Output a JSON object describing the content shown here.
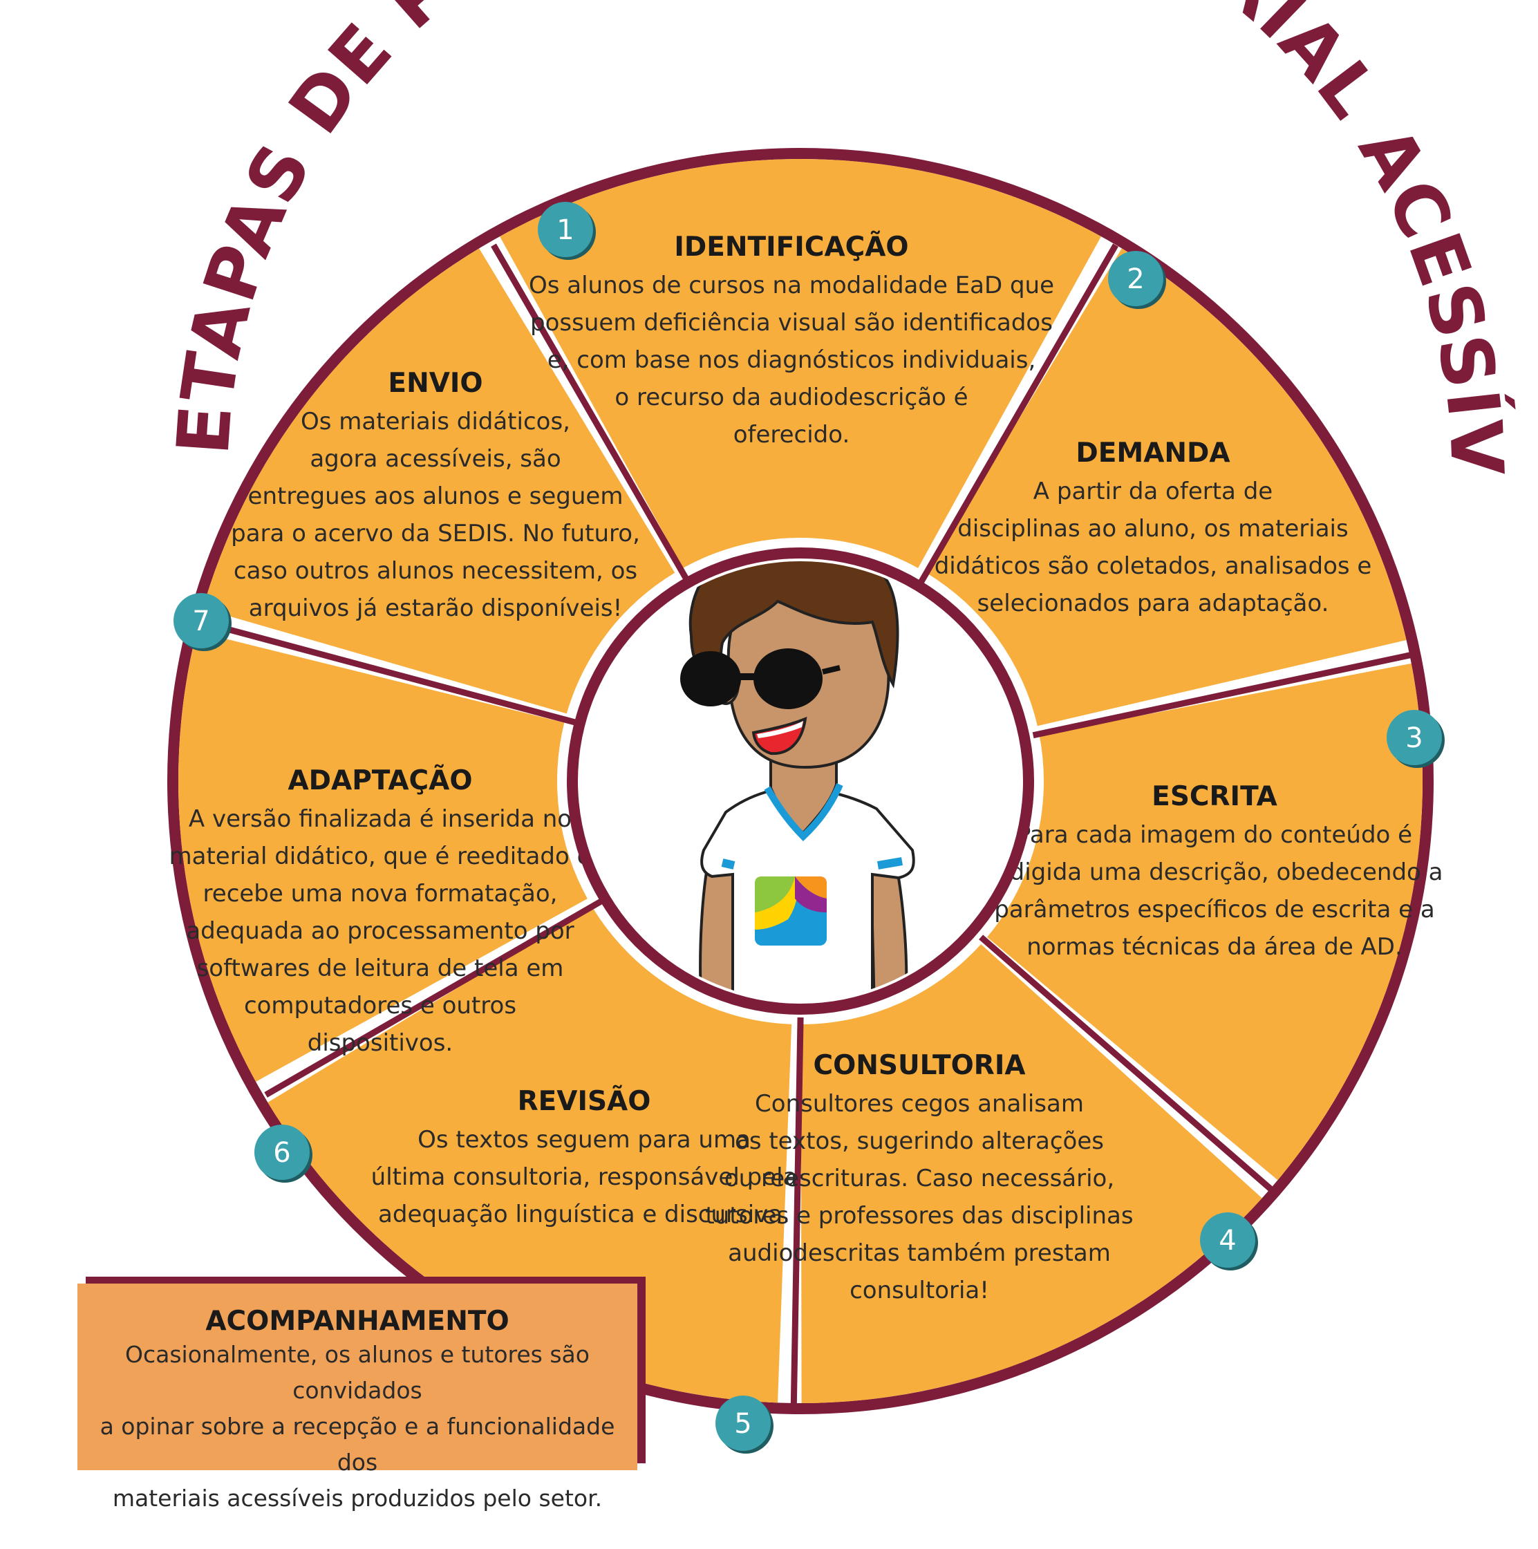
{
  "title": "ETAPAS DE PRODUÇÃO DO MATERIAL ACESSÍVEL DA SEDIS",
  "steps": [
    {
      "number": "1",
      "title": "IDENTIFICAÇÃO",
      "lines": [
        "Os alunos de cursos na modalidade EaD que",
        "possuem deficiência visual são identificados",
        "e, com base nos diagnósticos individuais,",
        "o recurso da audiodescrição é",
        "oferecido."
      ]
    },
    {
      "number": "2",
      "title": "DEMANDA",
      "lines": [
        "A partir da oferta de",
        "disciplinas ao aluno, os materiais",
        "didáticos são coletados, analisados e",
        "selecionados para adaptação."
      ]
    },
    {
      "number": "3",
      "title": "ESCRITA",
      "lines": [
        "Para cada imagem do conteúdo é",
        "redigida uma descrição, obedecendo a",
        "parâmetros específicos de escrita e a",
        "normas técnicas da área de AD."
      ]
    },
    {
      "number": "4",
      "title": "CONSULTORIA",
      "lines": [
        "Consultores cegos analisam",
        "os textos, sugerindo alterações",
        "ou reescrituras. Caso necessário,",
        "tutores e professores das disciplinas",
        "audiodescritas também prestam",
        "consultoria!"
      ]
    },
    {
      "number": "5",
      "title": "REVISÃO",
      "lines": [
        "Os textos seguem para uma",
        "última consultoria, responsável pela",
        "adequação linguística e discursiva."
      ]
    },
    {
      "number": "6",
      "title": "ADAPTAÇÃO",
      "lines": [
        "A versão finalizada é inserida no",
        "material didático, que é reeditado e",
        "recebe uma nova formatação,",
        "adequada ao processamento por",
        "softwares de leitura de tela em",
        "computadores e outros",
        "dispositivos."
      ]
    },
    {
      "number": "7",
      "title": "ENVIO",
      "lines": [
        "Os materiais didáticos,",
        "agora acessíveis, são",
        "entregues aos alunos e seguem",
        "para o acervo da SEDIS. No futuro,",
        "caso outros alunos necessitem, os",
        "arquivos já estarão disponíveis!"
      ]
    }
  ],
  "followup": {
    "title": "ACOMPANHAMENTO",
    "lines": [
      "Ocasionalmente, os alunos e tutores são convidados",
      "a opinar sobre a recepção e a funcionalidade dos",
      "materiais acessíveis produzidos pelo setor."
    ]
  },
  "colors": {
    "segment": "#f8ae3d",
    "border": "#7d1d3a",
    "badge": "#3aa0ab",
    "followup": "#f0a258"
  },
  "icons": {
    "center": "student-with-sunglasses-illustration",
    "badge": "numbered-circle-icon"
  }
}
